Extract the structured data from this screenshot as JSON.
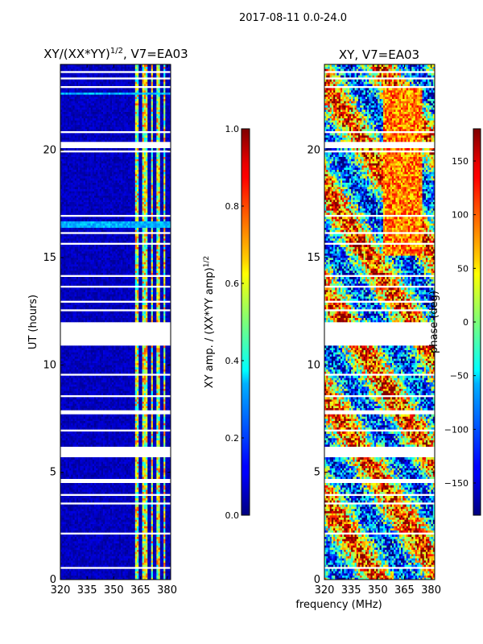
{
  "suptitle": "2017-08-11 0.0-24.0",
  "chart_data": [
    {
      "type": "heatmap",
      "title": "XY/(XX*YY)^{1/2}, V7=EA03",
      "title_base": "XY/(XX*YY)",
      "title_exp": "1/2",
      "title_tail": ", V7=EA03",
      "xlabel": "",
      "ylabel": "UT (hours)",
      "xlim": [
        320,
        382
      ],
      "ylim": [
        0,
        24
      ],
      "xticks": [
        320,
        335,
        350,
        365,
        380
      ],
      "yticks": [
        0,
        5,
        10,
        15,
        20
      ],
      "colorbar": {
        "label": "XY amp. / (XX*YY amp)^{1/2}",
        "label_base": "XY amp. / (XX*YY amp)",
        "label_exp": "1/2",
        "range": [
          0.0,
          1.0
        ],
        "ticks": [
          "0.0",
          "0.2",
          "0.4",
          "0.6",
          "0.8",
          "1.0"
        ],
        "tick_values": [
          0.0,
          0.2,
          0.4,
          0.6,
          0.8,
          1.0
        ],
        "colormap": "jet"
      }
    },
    {
      "type": "heatmap",
      "title": "XY, V7=EA03",
      "xlabel": "frequency (MHz)",
      "ylabel": "",
      "xlim": [
        320,
        382
      ],
      "ylim": [
        0,
        24
      ],
      "xticks": [
        320,
        335,
        350,
        365,
        380
      ],
      "yticks": [
        0,
        5,
        10,
        15,
        20
      ],
      "colorbar": {
        "label": "phase (deg)",
        "range": [
          -180,
          180
        ],
        "ticks": [
          "−150",
          "−100",
          "−50",
          "0",
          "50",
          "100",
          "150"
        ],
        "tick_values": [
          -150,
          -100,
          -50,
          0,
          50,
          100,
          150
        ],
        "colormap": "jet"
      }
    }
  ],
  "flagged_ut_bands": [
    [
      10.9,
      12.0
    ],
    [
      12.5,
      12.6
    ],
    [
      12.9,
      13.0
    ],
    [
      14.1,
      14.2
    ],
    [
      15.6,
      15.7
    ],
    [
      20.1,
      20.4
    ],
    [
      20.8,
      20.9
    ],
    [
      22.9,
      23.0
    ],
    [
      23.3,
      23.4
    ],
    [
      23.6,
      23.7
    ],
    [
      9.5,
      9.6
    ],
    [
      8.5,
      8.6
    ],
    [
      7.7,
      7.9
    ],
    [
      6.9,
      7.0
    ],
    [
      5.7,
      6.2
    ],
    [
      4.5,
      4.7
    ],
    [
      3.5,
      3.6
    ],
    [
      2.1,
      2.2
    ],
    [
      0.5,
      0.6
    ],
    [
      19.9,
      20.0
    ],
    [
      16.9,
      17.0
    ],
    [
      16.1,
      16.2
    ],
    [
      13.6,
      13.7
    ],
    [
      3.9,
      4.0
    ]
  ],
  "rfi_channels_mhz": [
    [
      362,
      364
    ],
    [
      366,
      369
    ],
    [
      371,
      372
    ],
    [
      374,
      376
    ],
    [
      378,
      379
    ]
  ]
}
